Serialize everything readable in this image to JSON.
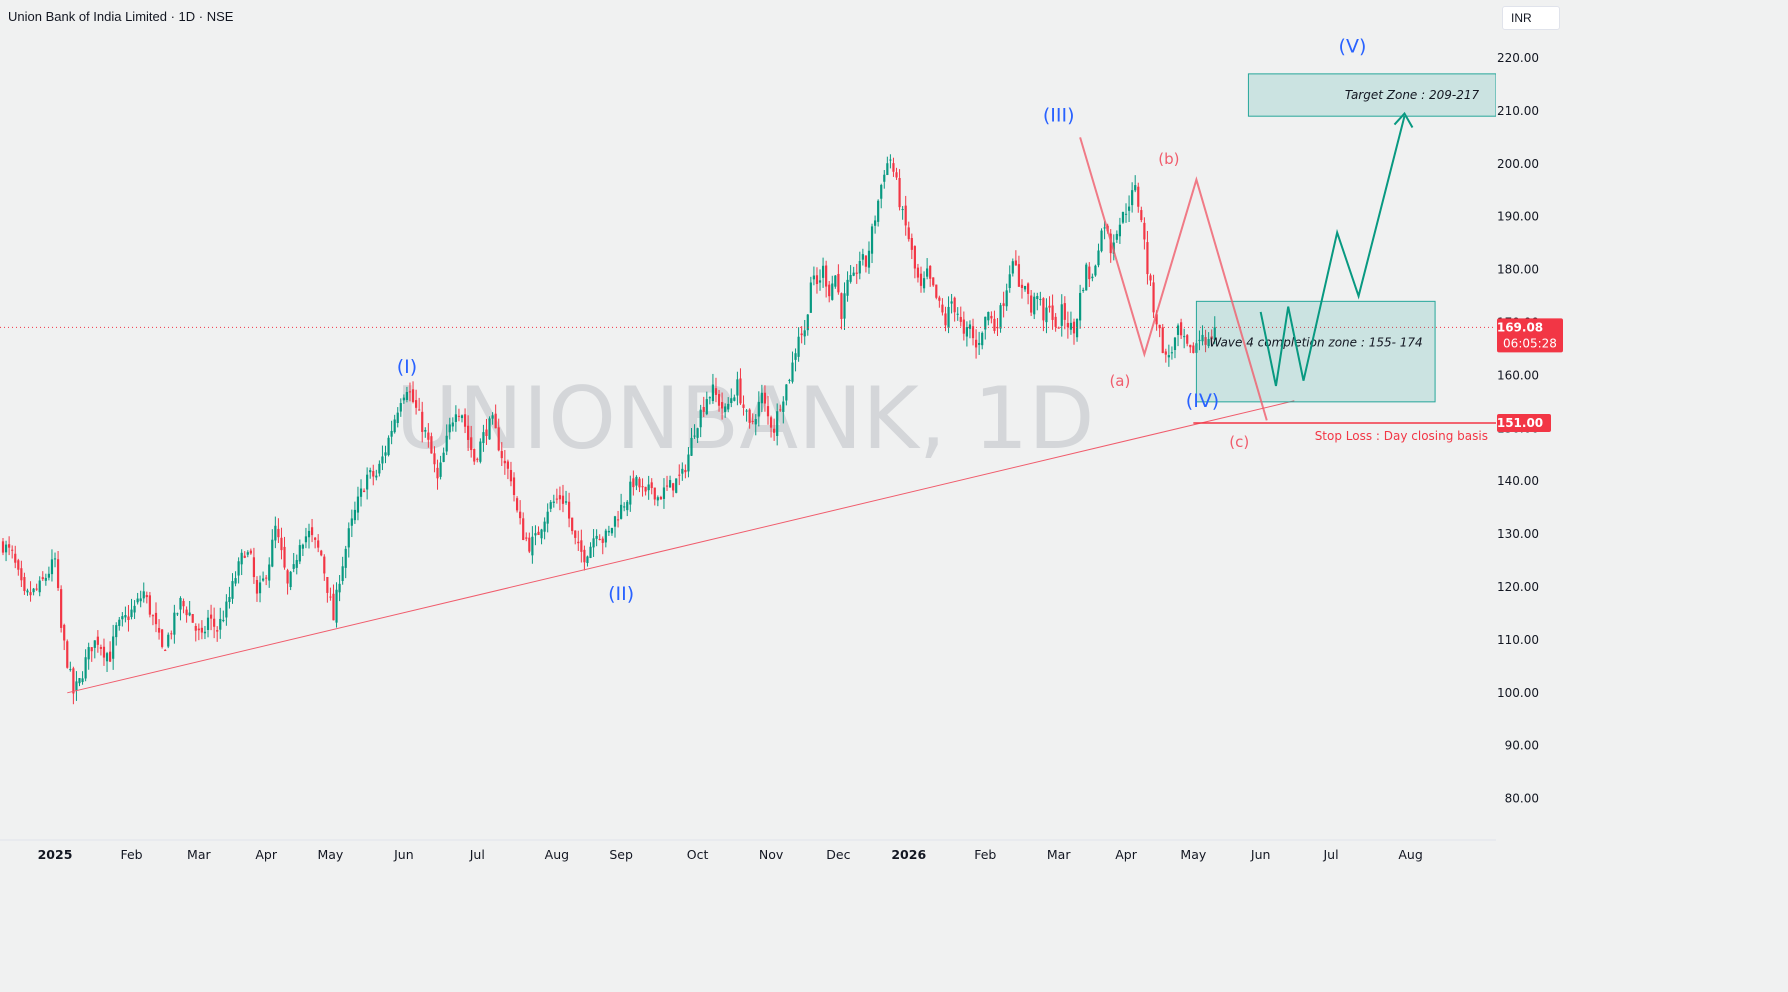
{
  "header": {
    "title": "Union Bank of India Limited · 1D · NSE",
    "currency": "INR"
  },
  "watermark": "UNIONBANK, 1D",
  "price_label": {
    "price": "169.08",
    "countdown": "06:05:28"
  },
  "stop_label": "151.00",
  "x_axis": [
    {
      "label": "2025",
      "bold": true,
      "bar": 17
    },
    {
      "label": "Feb",
      "bar": 42
    },
    {
      "label": "Mar",
      "bar": 64
    },
    {
      "label": "Apr",
      "bar": 86
    },
    {
      "label": "May",
      "bar": 107
    },
    {
      "label": "Jun",
      "bar": 131
    },
    {
      "label": "Jul",
      "bar": 155
    },
    {
      "label": "Aug",
      "bar": 181
    },
    {
      "label": "Sep",
      "bar": 202
    },
    {
      "label": "Oct",
      "bar": 227
    },
    {
      "label": "Nov",
      "bar": 251
    },
    {
      "label": "Dec",
      "bar": 273
    },
    {
      "label": "2026",
      "bold": true,
      "bar": 296
    },
    {
      "label": "Feb",
      "bar": 321
    },
    {
      "label": "Mar",
      "bar": 345
    },
    {
      "label": "Apr",
      "bar": 367
    },
    {
      "label": "May",
      "bar": 389
    },
    {
      "label": "Jun",
      "bar": 411
    },
    {
      "label": "Jul",
      "bar": 434
    },
    {
      "label": "Aug",
      "bar": 460
    }
  ],
  "annotations": {
    "waves": [
      {
        "label": "(I)",
        "bar": 132,
        "price": 160.5,
        "color": "#2962ff"
      },
      {
        "label": "(II)",
        "bar": 202,
        "price": 117.5,
        "color": "#2962ff"
      },
      {
        "label": "(III)",
        "bar": 345,
        "price": 208,
        "color": "#2962ff"
      },
      {
        "label": "(IV)",
        "bar": 392,
        "price": 154,
        "color": "#2962ff"
      },
      {
        "label": "(V)",
        "bar": 441,
        "price": 221,
        "color": "#2962ff"
      },
      {
        "label": "(a)",
        "bar": 365,
        "price": 158,
        "color": "#f05c6c"
      },
      {
        "label": "(b)",
        "bar": 381,
        "price": 200,
        "color": "#f05c6c"
      },
      {
        "label": "(c)",
        "bar": 404,
        "price": 146.5,
        "color": "#f05c6c"
      }
    ],
    "target_zone": {
      "text": "Target Zone : 209-217",
      "low": 209,
      "high": 217,
      "color": "#26a69a"
    },
    "wave4_zone": {
      "text": "Wave 4 completion zone : 155- 174",
      "low": 155,
      "high": 174,
      "color": "#26a69a"
    },
    "stop_loss": {
      "text": "Stop Loss : Day closing basis",
      "price": 151,
      "color": "#f23645"
    }
  },
  "chart_data": {
    "type": "candlestick",
    "title": "Union Bank of India Limited · 1D · NSE",
    "y_ticks": [
      80,
      90,
      100,
      110,
      120,
      130,
      140,
      150,
      160,
      170,
      180,
      190,
      200,
      210,
      220
    ],
    "ylim": [
      77,
      224
    ],
    "last_price": 169.08,
    "anchors": [
      [
        0,
        128
      ],
      [
        3,
        126
      ],
      [
        5,
        122
      ],
      [
        7,
        118
      ],
      [
        10,
        119
      ],
      [
        12,
        120
      ],
      [
        15,
        123
      ],
      [
        17,
        125
      ],
      [
        19,
        112
      ],
      [
        21,
        106
      ],
      [
        23,
        100
      ],
      [
        25,
        102
      ],
      [
        27,
        106
      ],
      [
        29,
        109
      ],
      [
        31,
        110
      ],
      [
        33,
        108
      ],
      [
        35,
        107
      ],
      [
        37,
        112
      ],
      [
        40,
        114
      ],
      [
        43,
        116
      ],
      [
        46,
        119
      ],
      [
        49,
        114
      ],
      [
        52,
        108
      ],
      [
        55,
        112
      ],
      [
        58,
        117
      ],
      [
        61,
        115
      ],
      [
        63,
        112
      ],
      [
        65,
        110
      ],
      [
        67,
        114
      ],
      [
        70,
        112
      ],
      [
        73,
        116
      ],
      [
        76,
        122
      ],
      [
        79,
        127
      ],
      [
        81,
        125
      ],
      [
        83,
        118
      ],
      [
        85,
        121
      ],
      [
        87,
        125
      ],
      [
        89,
        131
      ],
      [
        91,
        126
      ],
      [
        93,
        120
      ],
      [
        95,
        123
      ],
      [
        97,
        129
      ],
      [
        100,
        130
      ],
      [
        102,
        128
      ],
      [
        104,
        126
      ],
      [
        106,
        120
      ],
      [
        108,
        114
      ],
      [
        110,
        122
      ],
      [
        113,
        130
      ],
      [
        116,
        136
      ],
      [
        119,
        141
      ],
      [
        122,
        141
      ],
      [
        125,
        146
      ],
      [
        128,
        152
      ],
      [
        130,
        156
      ],
      [
        132,
        158
      ],
      [
        134,
        155
      ],
      [
        136,
        152
      ],
      [
        138,
        149
      ],
      [
        140,
        145
      ],
      [
        142,
        140
      ],
      [
        144,
        145
      ],
      [
        146,
        150
      ],
      [
        148,
        154
      ],
      [
        150,
        153
      ],
      [
        152,
        148
      ],
      [
        154,
        144
      ],
      [
        156,
        147
      ],
      [
        158,
        150
      ],
      [
        160,
        151
      ],
      [
        162,
        147
      ],
      [
        164,
        143
      ],
      [
        166,
        141
      ],
      [
        168,
        134
      ],
      [
        170,
        130
      ],
      [
        172,
        128
      ],
      [
        174,
        129
      ],
      [
        176,
        132
      ],
      [
        178,
        135
      ],
      [
        180,
        136
      ],
      [
        182,
        137
      ],
      [
        184,
        136
      ],
      [
        186,
        130
      ],
      [
        188,
        127
      ],
      [
        190,
        126
      ],
      [
        192,
        128
      ],
      [
        194,
        131
      ],
      [
        196,
        129
      ],
      [
        198,
        130
      ],
      [
        200,
        133
      ],
      [
        202,
        135
      ],
      [
        204,
        137
      ],
      [
        206,
        140
      ],
      [
        208,
        139
      ],
      [
        210,
        137
      ],
      [
        212,
        139
      ],
      [
        214,
        137
      ],
      [
        216,
        138
      ],
      [
        218,
        139
      ],
      [
        220,
        140
      ],
      [
        222,
        141
      ],
      [
        224,
        145
      ],
      [
        226,
        150
      ],
      [
        228,
        153
      ],
      [
        230,
        156
      ],
      [
        232,
        157
      ],
      [
        234,
        155
      ],
      [
        236,
        153
      ],
      [
        238,
        156
      ],
      [
        240,
        158
      ],
      [
        242,
        154
      ],
      [
        244,
        150
      ],
      [
        246,
        153
      ],
      [
        248,
        156
      ],
      [
        250,
        152
      ],
      [
        252,
        150
      ],
      [
        254,
        155
      ],
      [
        256,
        158
      ],
      [
        258,
        162
      ],
      [
        260,
        168
      ],
      [
        262,
        168
      ],
      [
        264,
        178
      ],
      [
        266,
        177
      ],
      [
        268,
        180
      ],
      [
        270,
        176
      ],
      [
        272,
        179
      ],
      [
        274,
        172
      ],
      [
        276,
        177
      ],
      [
        278,
        178
      ],
      [
        280,
        182
      ],
      [
        282,
        181
      ],
      [
        284,
        187
      ],
      [
        286,
        193
      ],
      [
        288,
        199
      ],
      [
        290,
        201
      ],
      [
        292,
        196
      ],
      [
        294,
        190
      ],
      [
        296,
        186
      ],
      [
        298,
        180
      ],
      [
        300,
        176
      ],
      [
        302,
        179
      ],
      [
        304,
        176
      ],
      [
        306,
        173
      ],
      [
        308,
        170
      ],
      [
        310,
        174
      ],
      [
        312,
        172
      ],
      [
        314,
        167
      ],
      [
        316,
        169
      ],
      [
        318,
        165
      ],
      [
        320,
        169
      ],
      [
        322,
        172
      ],
      [
        324,
        169
      ],
      [
        326,
        172
      ],
      [
        328,
        177
      ],
      [
        330,
        183
      ],
      [
        332,
        176
      ],
      [
        334,
        178
      ],
      [
        336,
        172
      ],
      [
        338,
        176
      ],
      [
        340,
        170
      ],
      [
        342,
        174
      ],
      [
        344,
        168
      ],
      [
        346,
        172
      ],
      [
        348,
        170
      ],
      [
        350,
        168
      ],
      [
        352,
        175
      ],
      [
        354,
        180
      ],
      [
        356,
        178
      ],
      [
        358,
        185
      ],
      [
        360,
        189
      ],
      [
        362,
        184
      ],
      [
        364,
        188
      ],
      [
        366,
        190
      ],
      [
        368,
        193
      ],
      [
        370,
        195
      ],
      [
        372,
        190
      ],
      [
        374,
        180
      ],
      [
        376,
        173
      ],
      [
        378,
        168
      ],
      [
        380,
        163
      ],
      [
        382,
        165
      ],
      [
        384,
        168
      ],
      [
        386,
        166
      ],
      [
        388,
        164
      ],
      [
        390,
        166
      ],
      [
        392,
        168
      ],
      [
        394,
        166
      ],
      [
        396,
        169.08
      ]
    ]
  }
}
